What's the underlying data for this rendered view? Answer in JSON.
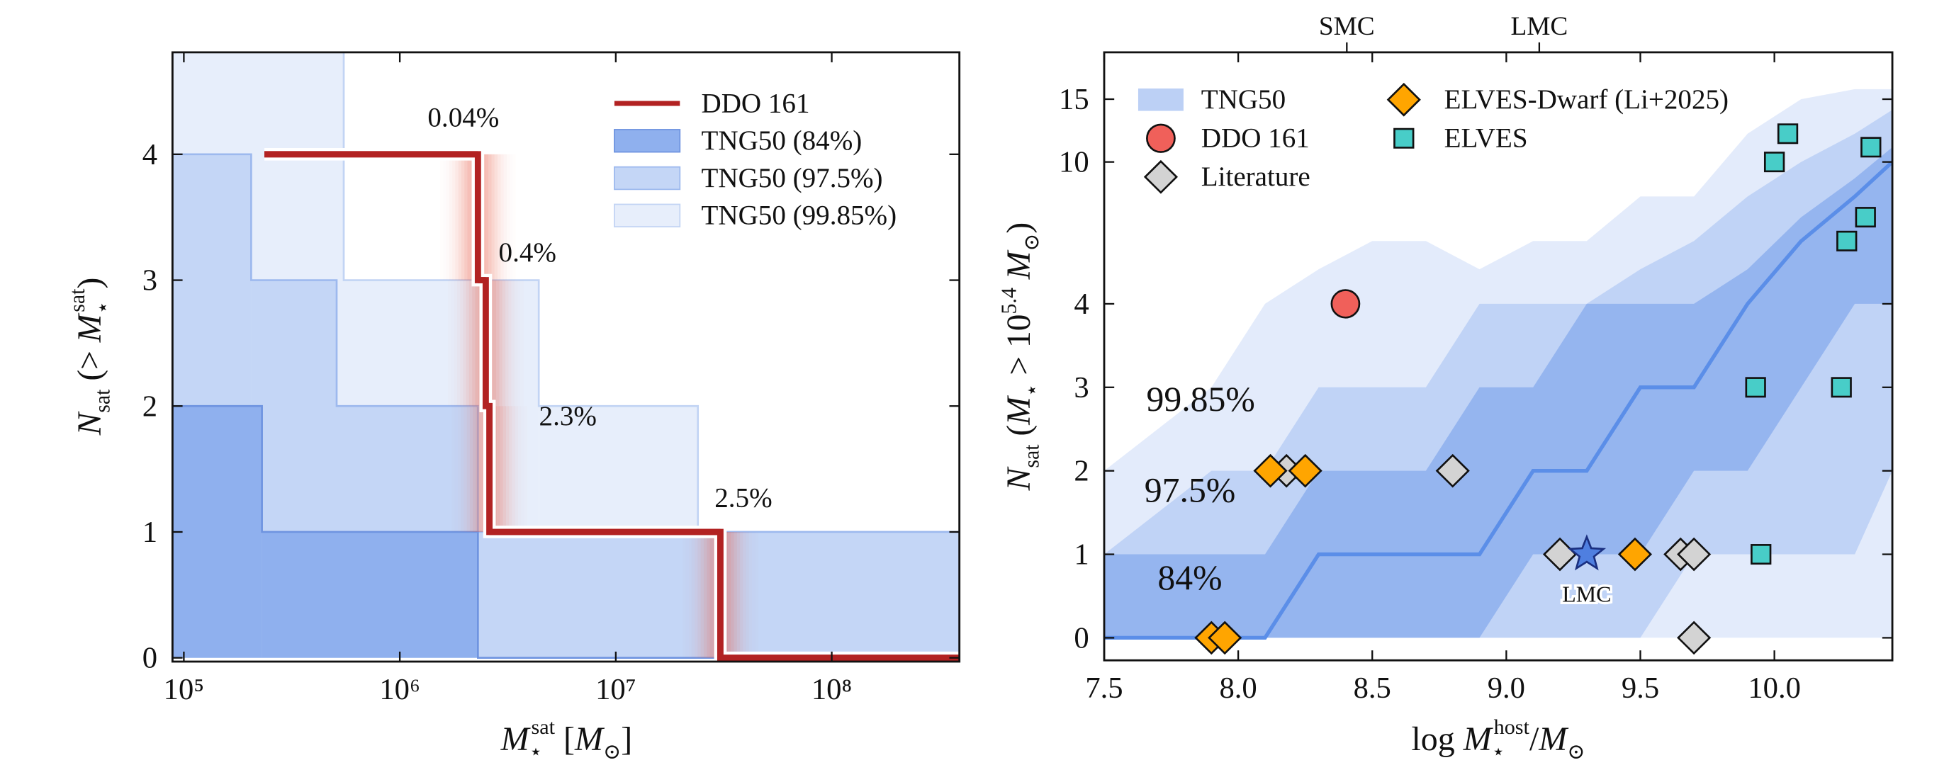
{
  "chart_data": [
    {
      "type": "step",
      "xlabel": [
        "M",
        "⋆",
        "sat",
        " [",
        "M",
        "⊙",
        "]"
      ],
      "ylabel": [
        "N",
        "sat",
        " (> ",
        "M",
        "⋆",
        "sat",
        ")"
      ],
      "xscale": "log",
      "xlim": [
        88600,
        390000000
      ],
      "ylim": [
        -0.03,
        4.81
      ],
      "xticks": [
        {
          "value": 100000,
          "label": "10⁵"
        },
        {
          "value": 1000000,
          "label": "10⁶"
        },
        {
          "value": 10000000,
          "label": "10⁷"
        },
        {
          "value": 100000000,
          "label": "10⁸"
        }
      ],
      "yticks": [
        0,
        1,
        2,
        3,
        4
      ],
      "series": [
        {
          "name": "DDO 161",
          "color": "#b22222",
          "x": [
            236000,
            2300000,
            2500000,
            2600000,
            30500000
          ],
          "values": [
            4,
            3,
            2,
            1,
            0
          ]
        }
      ],
      "bands": [
        {
          "name": "TNG50 (84%)",
          "color": "#8fb0ee",
          "edgecolor": "#6f94e0",
          "x": [
            88600,
            230000,
            2300000
          ],
          "values": [
            2,
            1,
            0
          ]
        },
        {
          "name": "TNG50 (97.5%)",
          "color": "#c4d6f6",
          "edgecolor": "#9db9ee",
          "x": [
            88600,
            205000,
            510000,
            2300000
          ],
          "values": [
            4,
            3,
            2,
            1
          ]
        },
        {
          "name": "TNG50 (99.85%)",
          "color": "#e7eefb",
          "edgecolor": "#c2d4f4",
          "x": [
            88600,
            550000,
            4400000,
            24000000
          ],
          "values": [
            5,
            3,
            2,
            1
          ]
        }
      ],
      "annotation_color": "#b22222",
      "annotations": [
        {
          "text": "0.04%",
          "x": 1970000,
          "y": 4.22
        },
        {
          "text": "0.4%",
          "x": 3900000,
          "y": 3.15
        },
        {
          "text": "2.3%",
          "x": 6000000,
          "y": 1.85
        },
        {
          "text": "2.5%",
          "x": 39000000,
          "y": 1.2
        }
      ]
    },
    {
      "type": "scatter",
      "xlabel": [
        "log ",
        "M",
        "⋆",
        "host",
        "/",
        "M",
        "⊙"
      ],
      "ylabel": [
        "N",
        "sat",
        " (",
        "M",
        "⋆",
        " > 10",
        "5.4",
        " M",
        "⊙",
        ")"
      ],
      "yscale": "symlog",
      "linthresh": 4,
      "xlim": [
        7.5,
        10.44
      ],
      "ylim": [
        -0.27,
        20.3
      ],
      "xticks": [
        7.5,
        {
          "value": 8,
          "label": "8.0"
        },
        8.5,
        {
          "value": 9,
          "label": "9.0"
        },
        9.5,
        {
          "value": 10,
          "label": "10.0"
        }
      ],
      "yticks": [
        0,
        1,
        2,
        3,
        4,
        10,
        15
      ],
      "top_xticks": [
        {
          "value": 8.405,
          "label": "SMC"
        },
        {
          "value": 9.123,
          "label": "LMC"
        }
      ],
      "band_legend": {
        "name": "TNG50",
        "color": "#bcd0f5"
      },
      "band_x": [
        7.5,
        7.9,
        8.1,
        8.3,
        8.5,
        8.7,
        8.9,
        9.1,
        9.3,
        9.5,
        9.7,
        9.9,
        10.1,
        10.3,
        10.44
      ],
      "bands": [
        {
          "label": "99.85%",
          "color": "#e3ebfb",
          "text_color": "#7ea2ec",
          "label_x": 7.86,
          "label_y": 2.72,
          "upper": [
            2,
            3,
            4,
            5,
            6,
            6,
            5,
            6,
            6,
            8,
            8,
            12,
            15,
            16,
            16
          ],
          "lower": [
            0,
            0,
            0,
            0,
            0,
            0,
            0,
            0,
            0,
            0,
            0,
            0,
            0,
            0,
            0
          ]
        },
        {
          "label": "97.5%",
          "color": "#c0d3f6",
          "text_color": "#4a78d4",
          "label_x": 7.82,
          "label_y": 1.63,
          "upper": [
            1,
            2,
            2,
            3,
            3,
            3,
            4,
            4,
            4,
            5,
            6,
            8,
            10,
            12,
            14
          ],
          "lower": [
            0,
            0,
            0,
            0,
            0,
            0,
            0,
            0,
            0,
            0,
            1,
            1,
            1,
            1,
            2
          ]
        },
        {
          "label": "84%",
          "color": "#95b5ef",
          "text_color": "#1f4a9a",
          "label_x": 7.82,
          "label_y": 0.58,
          "upper": [
            1,
            1,
            1,
            2,
            2,
            2,
            3,
            3,
            4,
            4,
            4,
            5,
            7,
            9,
            11
          ],
          "lower": [
            0,
            0,
            0,
            0,
            0,
            0,
            0,
            1,
            1,
            1,
            2,
            2,
            3,
            4,
            4
          ]
        }
      ],
      "median": {
        "color": "#5b8ee8",
        "values": [
          0,
          0,
          0,
          1,
          1,
          1,
          1,
          2,
          2,
          3,
          3,
          4,
          6,
          8,
          10
        ]
      },
      "series": [
        {
          "name": "DDO 161",
          "marker": "circle",
          "color": "#f0605a",
          "x": [
            8.4
          ],
          "values": [
            4
          ]
        },
        {
          "name": "Literature",
          "marker": "diamond",
          "color": "#d3d3d3",
          "x": [
            8.18,
            8.8,
            9.2,
            9.65,
            9.7,
            9.7
          ],
          "values": [
            2,
            2,
            1,
            1,
            1,
            0
          ]
        },
        {
          "name": "ELVES-Dwarf (Li+2025)",
          "marker": "diamond",
          "color": "#ffa500",
          "x": [
            7.9,
            7.95,
            8.12,
            8.25,
            9.48
          ],
          "values": [
            0,
            0,
            2,
            2,
            1
          ]
        },
        {
          "name": "ELVES",
          "marker": "square",
          "color": "#48cdc8",
          "x": [
            9.93,
            9.95,
            10.0,
            10.05,
            10.25,
            10.27,
            10.34,
            10.36
          ],
          "values": [
            3,
            1,
            10,
            12,
            3,
            6,
            7,
            11
          ]
        }
      ],
      "highlight": {
        "label": "LMC",
        "x": 9.3,
        "value": 1,
        "color": "#4f7fe0",
        "label_color": "#2a3a9c"
      }
    }
  ]
}
